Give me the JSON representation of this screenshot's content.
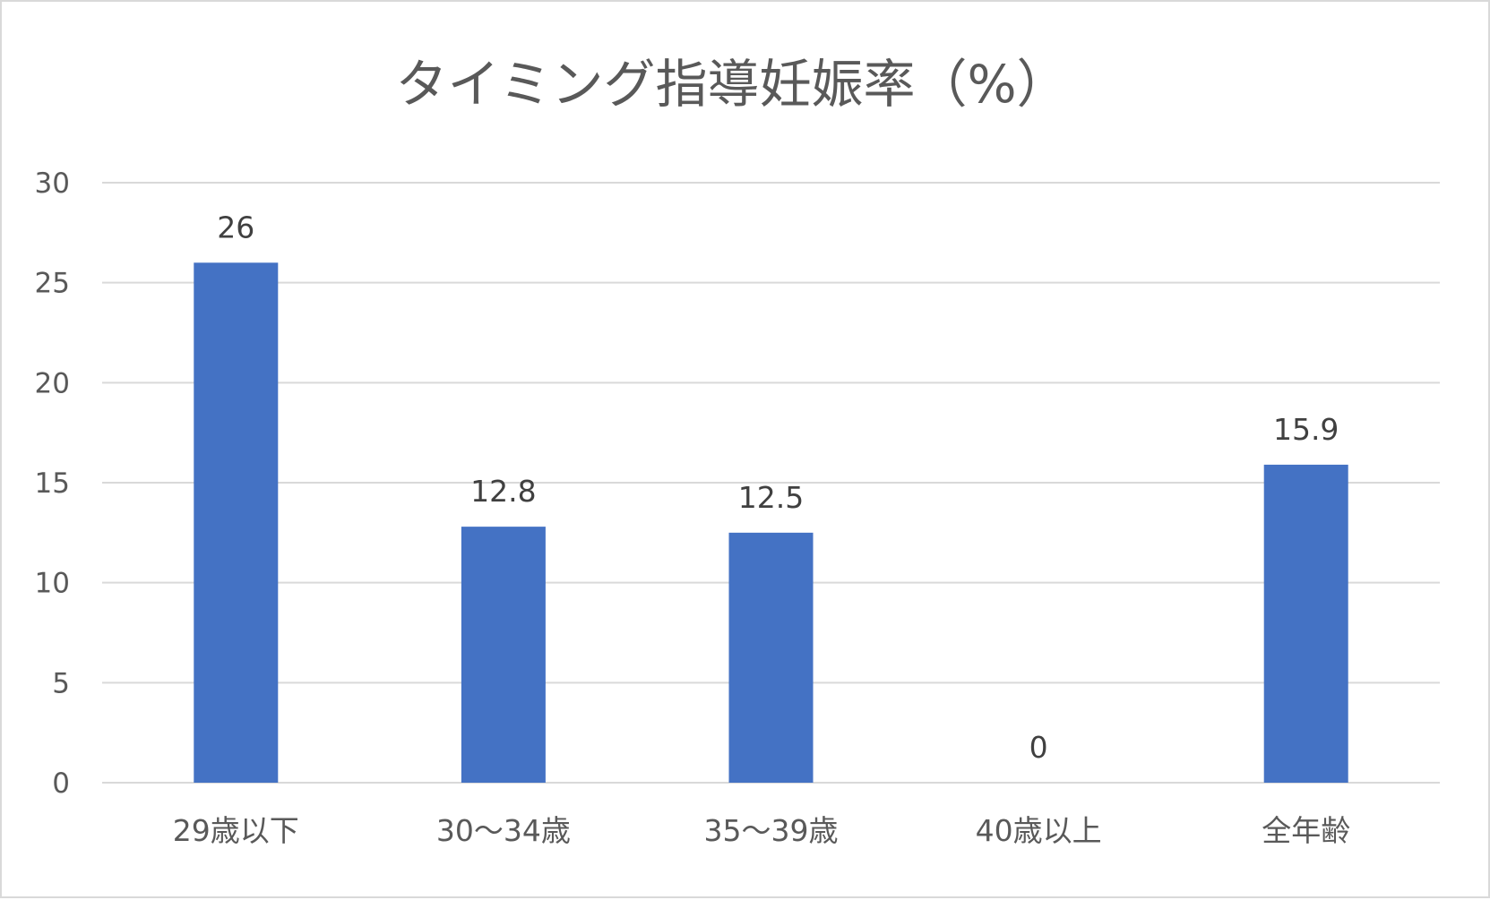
{
  "chart_data": {
    "type": "bar",
    "title": "タイミング指導妊娠率（%）",
    "categories": [
      "29歳以下",
      "30〜34歳",
      "35〜39歳",
      "40歳以上",
      "全年齢"
    ],
    "values": [
      26,
      12.8,
      12.5,
      0,
      15.9
    ],
    "value_labels": [
      "26",
      "12.8",
      "12.5",
      "0",
      "15.9"
    ],
    "ylim": [
      0,
      30
    ],
    "yticks": [
      0,
      5,
      10,
      15,
      20,
      25,
      30
    ],
    "ytick_labels": [
      "0",
      "5",
      "10",
      "15",
      "20",
      "25",
      "30"
    ],
    "grid": true,
    "legend": "none",
    "colors": {
      "bar": "#4472c4",
      "grid": "#d9d9d9",
      "title": "#595959",
      "axis_text": "#595959",
      "value_text": "#404040"
    }
  }
}
